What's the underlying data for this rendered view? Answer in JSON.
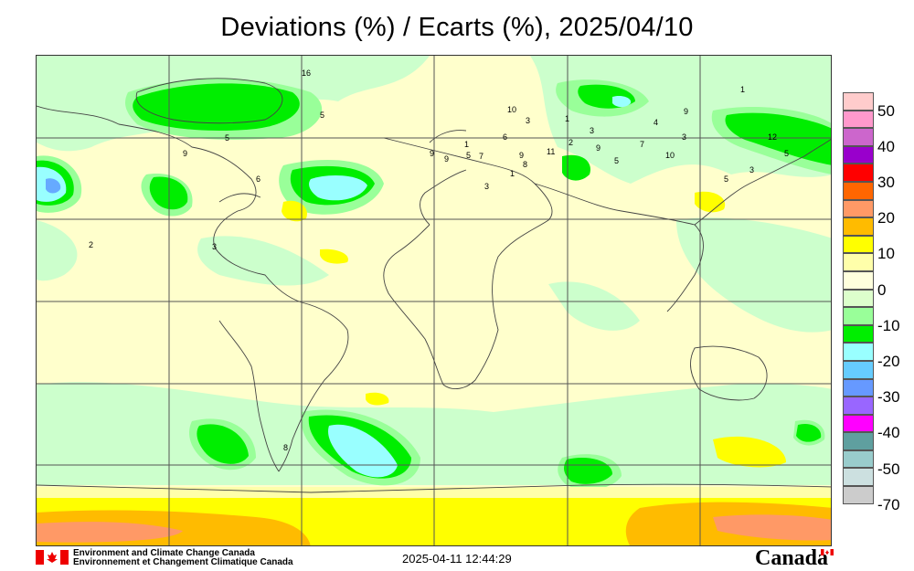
{
  "title": "Deviations (%) / Ecarts (%), 2025/04/10",
  "legend": {
    "labels": [
      "50",
      "40",
      "30",
      "20",
      "10",
      "0",
      "-10",
      "-20",
      "-30",
      "-40",
      "-50",
      "-70"
    ],
    "colors": [
      "#ffcccc",
      "#ff99cc",
      "#cc66cc",
      "#9900cc",
      "#ff0000",
      "#ff6600",
      "#ff9966",
      "#ffbb00",
      "#ffff00",
      "#ffffaa",
      "#ffffdd",
      "#ddffcc",
      "#99ff99",
      "#00ee00",
      "#99ffff",
      "#66ccff",
      "#6699ff",
      "#9966ff",
      "#ff00ff",
      "#5f9f9f",
      "#99cccc",
      "#cce0e0",
      "#cccccc"
    ]
  },
  "stations": [
    "16",
    "5",
    "5",
    "9",
    "6",
    "3",
    "2",
    "9",
    "5",
    "1",
    "10",
    "3",
    "1",
    "11",
    "2",
    "3",
    "9",
    "5",
    "7",
    "3",
    "10",
    "1",
    "9",
    "12",
    "3",
    "5",
    "5",
    "4",
    "7",
    "8",
    "1",
    "3",
    "9",
    "6",
    "9",
    "8"
  ],
  "footer": {
    "org_en": "Environment and Climate Change Canada",
    "org_fr": "Environnement et Changement Climatique Canada",
    "timestamp": "2025-04-11 12:44:29",
    "wordmark": "Canada"
  }
}
